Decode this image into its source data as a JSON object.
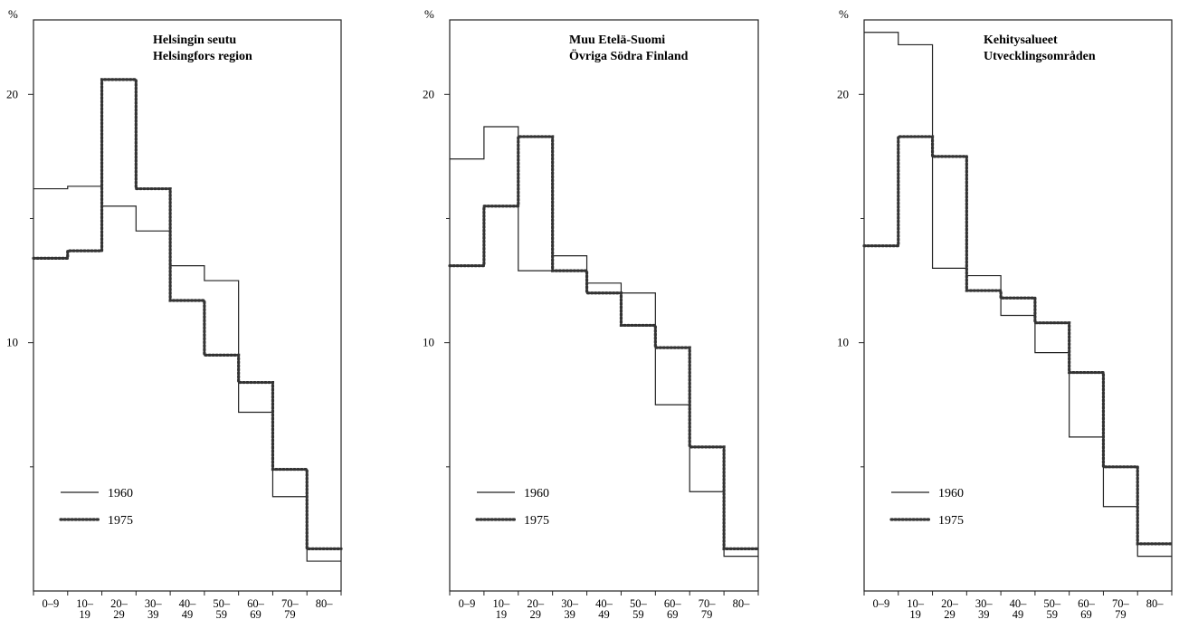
{
  "chart_data": [
    {
      "type": "line",
      "title_lines": [
        "Helsingin seutu",
        "Helsingfors region"
      ],
      "ylabel": "%",
      "ylim": [
        0,
        23
      ],
      "y_ticks": [
        10,
        20
      ],
      "y_minor_ticks": [
        5,
        15
      ],
      "categories": [
        [
          "0–9"
        ],
        [
          "10–",
          "19"
        ],
        [
          "20–",
          "29"
        ],
        [
          "30–",
          "39"
        ],
        [
          "40–",
          "49"
        ],
        [
          "50–",
          "59"
        ],
        [
          "60–",
          "69"
        ],
        [
          "70–",
          "79"
        ],
        [
          "80–"
        ]
      ],
      "series": [
        {
          "name": "1960",
          "values": [
            16.2,
            16.3,
            15.5,
            14.5,
            13.1,
            12.5,
            7.2,
            3.8,
            1.2
          ]
        },
        {
          "name": "1975",
          "values": [
            13.4,
            13.7,
            20.6,
            16.2,
            11.7,
            9.5,
            8.4,
            4.9,
            1.7
          ]
        }
      ],
      "legend_position": "bottom-left"
    },
    {
      "type": "line",
      "title_lines": [
        "Muu Etelä-Suomi",
        "Övriga Södra Finland"
      ],
      "ylabel": "%",
      "ylim": [
        0,
        23
      ],
      "y_ticks": [
        10,
        20
      ],
      "y_minor_ticks": [
        5,
        15
      ],
      "categories": [
        [
          "0–9"
        ],
        [
          "10–",
          "19"
        ],
        [
          "20–",
          "29"
        ],
        [
          "30–",
          "39"
        ],
        [
          "40–",
          "49"
        ],
        [
          "50–",
          "59"
        ],
        [
          "60–",
          "69"
        ],
        [
          "70–",
          "79"
        ],
        [
          "80–"
        ]
      ],
      "series": [
        {
          "name": "1960",
          "values": [
            17.4,
            18.7,
            12.9,
            13.5,
            12.4,
            12.0,
            7.5,
            4.0,
            1.4
          ]
        },
        {
          "name": "1975",
          "values": [
            13.1,
            15.5,
            18.3,
            12.9,
            12.0,
            10.7,
            9.8,
            5.8,
            1.7
          ]
        }
      ],
      "legend_position": "bottom-left"
    },
    {
      "type": "line",
      "title_lines": [
        "Kehitysalueet",
        "Utvecklingsområden"
      ],
      "ylabel": "%",
      "ylim": [
        0,
        23
      ],
      "y_ticks": [
        10,
        20
      ],
      "y_minor_ticks": [
        5,
        15
      ],
      "categories": [
        [
          "0–9"
        ],
        [
          "10–",
          "19"
        ],
        [
          "20–",
          "29"
        ],
        [
          "30–",
          "39"
        ],
        [
          "40–",
          "49"
        ],
        [
          "50–",
          "59"
        ],
        [
          "60–",
          "69"
        ],
        [
          "70–",
          "79"
        ],
        [
          "80–"
        ]
      ],
      "series": [
        {
          "name": "1960",
          "values": [
            22.5,
            22.0,
            13.0,
            12.7,
            11.1,
            9.6,
            6.2,
            3.4,
            1.4
          ]
        },
        {
          "name": "1975",
          "values": [
            13.9,
            18.3,
            17.5,
            12.1,
            11.8,
            10.8,
            8.8,
            5.0,
            1.9
          ]
        }
      ],
      "legend_position": "bottom-left"
    }
  ]
}
